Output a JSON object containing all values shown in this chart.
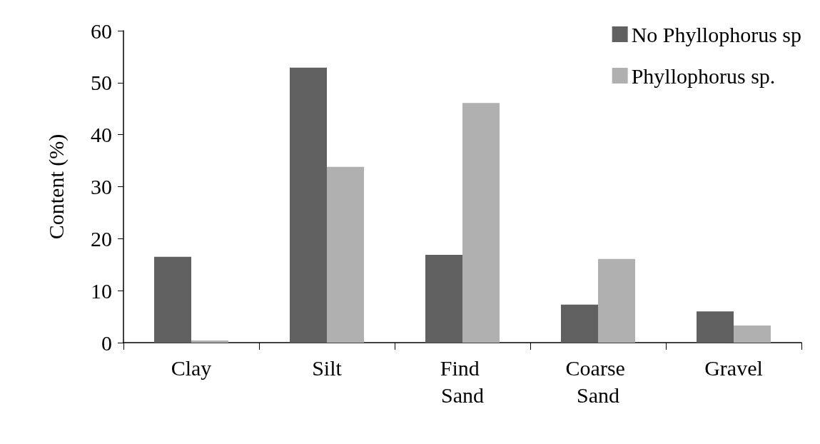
{
  "chart_data": {
    "type": "bar",
    "ylabel": "Content (%)",
    "categories": [
      "Clay",
      "Silt",
      "Find Sand",
      "Coarse Sand",
      "Gravel"
    ],
    "series": [
      {
        "name": "No Phyllophorus sp",
        "color": "#606060",
        "values": [
          16.5,
          52.9,
          16.9,
          7.3,
          6.0
        ]
      },
      {
        "name": "Phyllophorus sp.",
        "color": "#b0b0b0",
        "values": [
          0.4,
          33.8,
          46.1,
          16.1,
          3.3
        ]
      }
    ],
    "ylim": [
      0,
      60
    ],
    "yticks": [
      0,
      10,
      20,
      30,
      40,
      50,
      60
    ],
    "grid": false,
    "legend": "top right"
  }
}
